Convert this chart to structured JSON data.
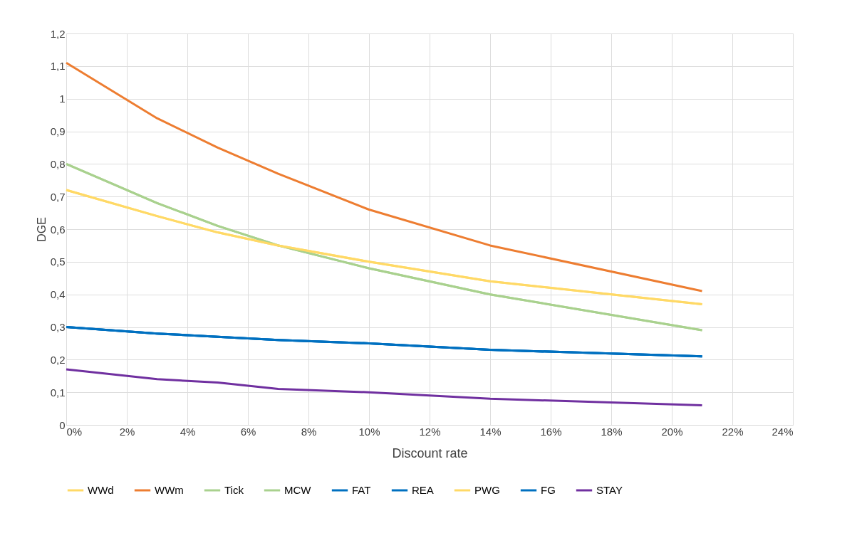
{
  "chart_data": {
    "type": "line",
    "xlabel": "Discount rate",
    "ylabel": "DGE",
    "x": [
      0,
      3,
      5,
      7,
      10,
      14,
      21
    ],
    "series": [
      {
        "name": "WWd",
        "color": "#ffd966",
        "values": [
          0.72,
          0.64,
          0.59,
          0.55,
          0.5,
          0.44,
          0.37
        ]
      },
      {
        "name": "WWm",
        "color": "#ed7d31",
        "values": [
          1.11,
          0.94,
          0.85,
          0.77,
          0.66,
          0.55,
          0.41
        ]
      },
      {
        "name": "Tick",
        "color": "#a9d18e",
        "values": [
          0.8,
          0.68,
          0.61,
          0.55,
          0.48,
          0.4,
          0.29
        ]
      },
      {
        "name": "MCW",
        "color": "#a9d18e",
        "values": [
          0.8,
          0.68,
          0.61,
          0.55,
          0.48,
          0.4,
          0.29
        ]
      },
      {
        "name": "FAT",
        "color": "#0070c0",
        "values": [
          0.3,
          0.28,
          0.27,
          0.26,
          0.25,
          0.23,
          0.21
        ]
      },
      {
        "name": "REA",
        "color": "#0070c0",
        "values": [
          0.3,
          0.28,
          0.27,
          0.26,
          0.25,
          0.23,
          0.21
        ]
      },
      {
        "name": "PWG",
        "color": "#ffd966",
        "values": [
          0.72,
          0.64,
          0.59,
          0.55,
          0.5,
          0.44,
          0.37
        ]
      },
      {
        "name": "FG",
        "color": "#0070c0",
        "values": [
          0.3,
          0.28,
          0.27,
          0.26,
          0.25,
          0.23,
          0.21
        ]
      },
      {
        "name": "STAY",
        "color": "#7030a0",
        "values": [
          0.17,
          0.14,
          0.13,
          0.11,
          0.1,
          0.08,
          0.06
        ]
      }
    ],
    "xlim": [
      0,
      24
    ],
    "xticks": [
      {
        "value": 0,
        "label": "0%"
      },
      {
        "value": 2,
        "label": "2%"
      },
      {
        "value": 4,
        "label": "4%"
      },
      {
        "value": 6,
        "label": "6%"
      },
      {
        "value": 8,
        "label": "8%"
      },
      {
        "value": 10,
        "label": "10%"
      },
      {
        "value": 12,
        "label": "12%"
      },
      {
        "value": 14,
        "label": "14%"
      },
      {
        "value": 16,
        "label": "16%"
      },
      {
        "value": 18,
        "label": "18%"
      },
      {
        "value": 20,
        "label": "20%"
      },
      {
        "value": 22,
        "label": "22%"
      },
      {
        "value": 24,
        "label": "24%"
      }
    ],
    "ylim": [
      0,
      1.2
    ],
    "yticks": [
      0,
      {
        "value": 0.1,
        "label": "0,1"
      },
      {
        "value": 0.2,
        "label": "0,2"
      },
      {
        "value": 0.3,
        "label": "0,3"
      },
      {
        "value": 0.4,
        "label": "0,4"
      },
      {
        "value": 0.5,
        "label": "0,5"
      },
      {
        "value": 0.6,
        "label": "0,6"
      },
      {
        "value": 0.7,
        "label": "0,7"
      },
      {
        "value": 0.8,
        "label": "0,8"
      },
      {
        "value": 0.9,
        "label": "0,9"
      },
      1,
      {
        "value": 1.1,
        "label": "1,1"
      },
      {
        "value": 1.2,
        "label": "1,2"
      }
    ],
    "grid": true,
    "legend": "bottom",
    "line_style": "solid"
  }
}
